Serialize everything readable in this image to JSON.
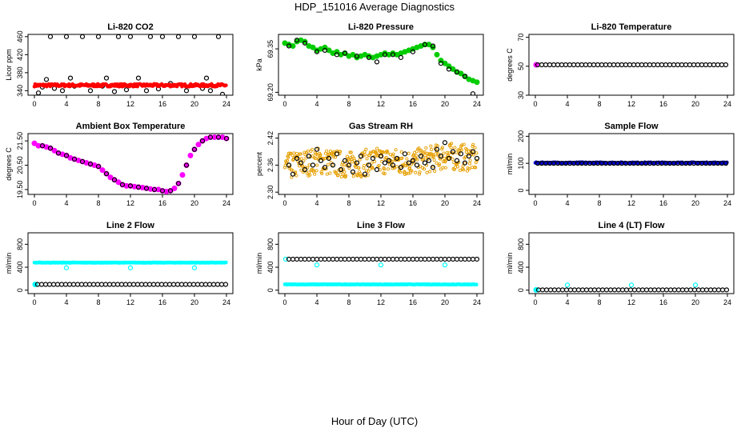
{
  "figure": {
    "title": "HDP_151016  Average Diagnostics",
    "xlabel": "Hour of Day (UTC)"
  },
  "chart_data": [
    {
      "type": "scatter",
      "title": "Li-820 CO2",
      "ylabel": "Licor ppm",
      "xlim": [
        0,
        24
      ],
      "ylim": [
        330,
        465
      ],
      "xticks": [
        0,
        4,
        8,
        12,
        16,
        20,
        24
      ],
      "yticks": [
        340,
        380,
        420,
        460
      ],
      "grid": false,
      "series": [
        {
          "color": "#000000",
          "kind": "open-circle",
          "x": [
            0.5,
            1.0,
            1.5,
            2.0,
            2.5,
            3.5,
            4.0,
            4.5,
            5.0,
            6.0,
            7.0,
            8.0,
            8.5,
            9.0,
            10.0,
            10.5,
            11.5,
            12.0,
            12.5,
            13.0,
            14.0,
            14.5,
            15.5,
            16.0,
            17.0,
            18.0,
            19.0,
            20.0,
            21.0,
            21.5,
            22.0,
            23.0,
            23.5
          ],
          "y": [
            335,
            348,
            365,
            460,
            345,
            340,
            460,
            368,
            350,
            460,
            340,
            460,
            350,
            368,
            338,
            460,
            342,
            460,
            352,
            368,
            340,
            460,
            344,
            460,
            356,
            460,
            340,
            460,
            345,
            368,
            340,
            460,
            332
          ]
        },
        {
          "color": "#ff0000",
          "kind": "band",
          "x0": 0,
          "x1": 24,
          "y": 352,
          "jitter": 3
        }
      ]
    },
    {
      "type": "scatter",
      "title": "Li-820 Pressure",
      "ylabel": "kPa",
      "xlim": [
        0,
        24
      ],
      "ylim": [
        69.19,
        69.4
      ],
      "xticks": [
        0,
        4,
        8,
        12,
        16,
        20,
        24
      ],
      "yticks": [
        69.2,
        69.35
      ],
      "grid": false,
      "series": [
        {
          "color": "#00cc00",
          "kind": "filled-circle",
          "x": [
            0,
            0.5,
            1,
            1.5,
            2,
            2.5,
            3,
            3.5,
            4,
            4.5,
            5,
            5.5,
            6,
            6.5,
            7,
            7.5,
            8,
            8.5,
            9,
            9.5,
            10,
            10.5,
            11,
            11.5,
            12,
            12.5,
            13,
            13.5,
            14,
            14.5,
            15,
            15.5,
            16,
            16.5,
            17,
            17.5,
            18,
            18.5,
            19,
            19.5,
            20,
            20.5,
            21,
            21.5,
            22,
            22.5,
            23,
            23.5,
            24
          ],
          "y": [
            69.37,
            69.365,
            69.36,
            69.375,
            69.38,
            69.375,
            69.36,
            69.355,
            69.345,
            69.35,
            69.355,
            69.345,
            69.335,
            69.34,
            69.33,
            69.335,
            69.325,
            69.33,
            69.32,
            69.325,
            69.33,
            69.325,
            69.32,
            69.325,
            69.33,
            69.335,
            69.33,
            69.335,
            69.33,
            69.335,
            69.34,
            69.345,
            69.35,
            69.355,
            69.36,
            69.365,
            69.365,
            69.355,
            69.33,
            69.31,
            69.3,
            69.29,
            69.28,
            69.27,
            69.265,
            69.255,
            69.245,
            69.24,
            69.235
          ]
        },
        {
          "color": "#000000",
          "kind": "open-circle",
          "x": [
            0.5,
            1.5,
            2.5,
            4,
            5,
            6.5,
            7.5,
            9,
            10.5,
            11.5,
            12.5,
            13.5,
            14.5,
            16,
            17.5,
            18.5,
            19.5,
            20.5,
            21.5,
            22.5,
            23.5
          ],
          "y": [
            69.36,
            69.38,
            69.37,
            69.34,
            69.345,
            69.33,
            69.335,
            69.325,
            69.32,
            69.305,
            69.33,
            69.33,
            69.32,
            69.34,
            69.365,
            69.36,
            69.3,
            69.28,
            69.27,
            69.255,
            69.195
          ]
        }
      ]
    },
    {
      "type": "scatter",
      "title": "Li-820 Temperature",
      "ylabel": "degrees C",
      "xlim": [
        0,
        24
      ],
      "ylim": [
        30,
        72
      ],
      "xticks": [
        0,
        4,
        8,
        12,
        16,
        20,
        24
      ],
      "yticks": [
        30,
        50,
        70
      ],
      "grid": false,
      "series": [
        {
          "color": "#ff00ff",
          "kind": "filled-circle",
          "x": [
            0.1
          ],
          "y": [
            51
          ]
        },
        {
          "color": "#000000",
          "kind": "open-circle",
          "x0": 0.3,
          "x1": 24,
          "step": 0.5,
          "y": 51
        }
      ]
    },
    {
      "type": "scatter",
      "title": "Ambient Box Temperature",
      "ylabel": "degrees C",
      "xlim": [
        0,
        24
      ],
      "ylim": [
        19.3,
        21.8
      ],
      "xticks": [
        0,
        4,
        8,
        12,
        16,
        20,
        24
      ],
      "yticks": [
        19.5,
        20.5,
        21.5
      ],
      "grid": false,
      "series": [
        {
          "color": "#ff00ff",
          "kind": "filled-circle",
          "x": [
            0,
            0.5,
            1,
            1.5,
            2,
            2.5,
            3,
            3.5,
            4,
            4.5,
            5,
            5.5,
            6,
            6.5,
            7,
            7.5,
            8,
            8.5,
            9,
            9.5,
            10,
            10.5,
            11,
            11.5,
            12,
            12.5,
            13,
            13.5,
            14,
            14.5,
            15,
            15.5,
            16,
            16.5,
            17,
            17.5,
            18,
            18.5,
            19,
            19.5,
            20,
            20.5,
            21,
            21.5,
            22,
            22.5,
            23,
            23.5,
            24
          ],
          "y": [
            21.4,
            21.3,
            21.3,
            21.25,
            21.2,
            21.1,
            21.0,
            20.95,
            20.9,
            20.8,
            20.75,
            20.7,
            20.65,
            20.6,
            20.55,
            20.5,
            20.45,
            20.3,
            20.15,
            20.0,
            19.9,
            19.8,
            19.7,
            19.65,
            19.65,
            19.62,
            19.6,
            19.58,
            19.55,
            19.52,
            19.5,
            19.5,
            19.45,
            19.42,
            19.45,
            19.55,
            19.75,
            20.1,
            20.5,
            20.9,
            21.15,
            21.35,
            21.5,
            21.6,
            21.65,
            21.65,
            21.65,
            21.65,
            21.6
          ]
        },
        {
          "color": "#000000",
          "kind": "open-circle",
          "x": [
            1,
            2,
            3,
            4,
            5,
            6,
            7,
            8,
            9,
            10,
            11,
            12,
            13,
            14,
            15,
            16,
            17,
            18,
            19,
            20,
            21,
            22,
            23,
            24
          ],
          "y": [
            21.3,
            21.2,
            21.0,
            20.9,
            20.75,
            20.65,
            20.55,
            20.45,
            20.15,
            19.9,
            19.7,
            19.65,
            19.6,
            19.55,
            19.5,
            19.45,
            19.45,
            19.75,
            20.5,
            21.15,
            21.5,
            21.65,
            21.65,
            21.6
          ]
        }
      ]
    },
    {
      "type": "scatter",
      "title": "Gas Stream RH",
      "ylabel": "percent",
      "xlim": [
        0,
        24
      ],
      "ylim": [
        2.295,
        2.43
      ],
      "xticks": [
        0,
        4,
        8,
        12,
        16,
        20,
        24
      ],
      "yticks": [
        2.3,
        2.36,
        2.42
      ],
      "grid": false,
      "series": [
        {
          "color": "#e69f00",
          "kind": "noise-band",
          "centers": [
            [
              0,
              2.355
            ],
            [
              4,
              2.37
            ],
            [
              8,
              2.36
            ],
            [
              12,
              2.37
            ],
            [
              16,
              2.365
            ],
            [
              20,
              2.38
            ],
            [
              24,
              2.375
            ]
          ],
          "spread": 0.03
        },
        {
          "color": "#000000",
          "kind": "open-circle",
          "x": [
            0.5,
            1,
            1.5,
            2,
            2.5,
            3,
            3.5,
            4,
            4.5,
            5,
            5.5,
            6,
            6.5,
            7,
            7.5,
            8,
            8.5,
            9,
            9.5,
            10,
            10.5,
            11,
            11.5,
            12,
            12.5,
            13,
            13.5,
            14,
            14.5,
            15,
            15.5,
            16,
            16.5,
            17,
            17.5,
            18,
            18.5,
            19,
            19.5,
            20,
            20.5,
            21,
            21.5,
            22,
            22.5,
            23,
            23.5,
            24
          ],
          "y": [
            2.36,
            2.34,
            2.375,
            2.365,
            2.35,
            2.38,
            2.36,
            2.395,
            2.37,
            2.355,
            2.375,
            2.36,
            2.385,
            2.35,
            2.37,
            2.36,
            2.345,
            2.365,
            2.38,
            2.34,
            2.36,
            2.375,
            2.35,
            2.38,
            2.365,
            2.37,
            2.36,
            2.375,
            2.355,
            2.385,
            2.365,
            2.37,
            2.36,
            2.38,
            2.365,
            2.37,
            2.355,
            2.395,
            2.38,
            2.41,
            2.375,
            2.39,
            2.37,
            2.385,
            2.365,
            2.38,
            2.39,
            2.375
          ]
        }
      ]
    },
    {
      "type": "scatter",
      "title": "Sample Flow",
      "ylabel": "ml/min",
      "xlim": [
        0,
        24
      ],
      "ylim": [
        -15,
        210
      ],
      "xticks": [
        0,
        4,
        8,
        12,
        16,
        20,
        24
      ],
      "yticks": [
        0,
        100,
        200
      ],
      "grid": false,
      "series": [
        {
          "color": "#0000cc",
          "kind": "band",
          "x0": 0,
          "x1": 24,
          "y": 102,
          "jitter": 2
        },
        {
          "color": "#000000",
          "kind": "open-circle",
          "x0": 0.3,
          "x1": 24,
          "step": 0.5,
          "y": 100
        }
      ]
    },
    {
      "type": "scatter",
      "title": "Line 2 Flow",
      "ylabel": "ml/min",
      "xlim": [
        0,
        24
      ],
      "ylim": [
        -60,
        1000
      ],
      "xticks": [
        0,
        4,
        8,
        12,
        16,
        20,
        24
      ],
      "yticks": [
        0,
        400,
        800
      ],
      "grid": false,
      "series": [
        {
          "color": "#00ffff",
          "kind": "band",
          "x0": 0,
          "x1": 24,
          "y": 480,
          "jitter": 4
        },
        {
          "color": "#00ffff",
          "kind": "open-circle",
          "x": [
            4,
            12,
            20
          ],
          "y": [
            390,
            390,
            390
          ]
        },
        {
          "color": "#00ffff",
          "kind": "filled-circle",
          "x": [
            0.1
          ],
          "y": [
            100
          ]
        },
        {
          "color": "#000000",
          "kind": "open-circle",
          "x0": 0.4,
          "x1": 24,
          "step": 0.5,
          "y": 100
        }
      ]
    },
    {
      "type": "scatter",
      "title": "Line 3 Flow",
      "ylabel": "ml/min",
      "xlim": [
        0,
        24
      ],
      "ylim": [
        -60,
        1000
      ],
      "xticks": [
        0,
        4,
        8,
        12,
        16,
        20,
        24
      ],
      "yticks": [
        0,
        400,
        800
      ],
      "grid": false,
      "series": [
        {
          "color": "#00ffff",
          "kind": "band",
          "x0": 0,
          "x1": 24,
          "y": 100,
          "jitter": 4
        },
        {
          "color": "#00ffff",
          "kind": "open-circle",
          "x": [
            0.1,
            4,
            12,
            20
          ],
          "y": [
            540,
            440,
            440,
            440
          ]
        },
        {
          "color": "#000000",
          "kind": "open-circle",
          "x0": 0.5,
          "x1": 24,
          "step": 0.5,
          "y": 540
        }
      ]
    },
    {
      "type": "scatter",
      "title": "Line 4 (LT) Flow",
      "ylabel": "ml/min",
      "xlim": [
        0,
        24
      ],
      "ylim": [
        -60,
        1000
      ],
      "xticks": [
        0,
        4,
        8,
        12,
        16,
        20,
        24
      ],
      "yticks": [
        0,
        400,
        800
      ],
      "grid": false,
      "series": [
        {
          "color": "#00ffff",
          "kind": "filled-circle",
          "x": [
            0.1
          ],
          "y": [
            5
          ]
        },
        {
          "color": "#00ffff",
          "kind": "open-circle",
          "x": [
            4,
            12,
            20
          ],
          "y": [
            90,
            90,
            90
          ]
        },
        {
          "color": "#000000",
          "kind": "open-circle",
          "x0": 0.4,
          "x1": 24,
          "step": 0.5,
          "y": 5
        }
      ]
    }
  ]
}
